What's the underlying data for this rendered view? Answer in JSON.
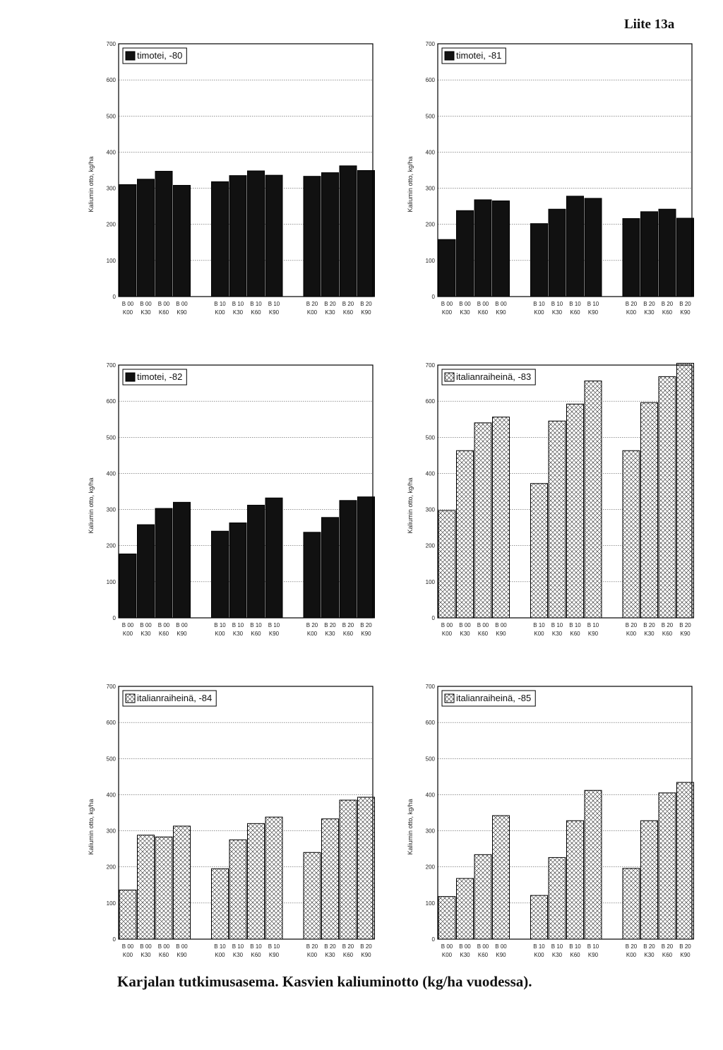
{
  "page": {
    "appendix_label": "Liite 13a",
    "caption": "Karjalan tutkimusasema. Kasvien kaliuminotto (kg/ha vuodessa)."
  },
  "colors": {
    "solid": "#111111",
    "hatch_bg": "#ffffff",
    "grid": "#555555"
  },
  "chart_data": [
    {
      "type": "bar",
      "fill": "solid",
      "legend": "timotei, -80",
      "legend_position": "top-left",
      "ylabel": "Kaliumin otto, kg/ha",
      "ylim": [
        0,
        700
      ],
      "yticks": [
        "0",
        "100",
        "200",
        "300",
        "400",
        "500",
        "600",
        "700"
      ],
      "groups": [
        {
          "top": [
            "B 00",
            "B 00",
            "B 00",
            "B 00"
          ],
          "bottom": [
            "K00",
            "K30",
            "K60",
            "K90"
          ],
          "values": [
            310,
            325,
            347,
            308
          ]
        },
        {
          "top": [
            "B 10",
            "B 10",
            "B 10",
            "B 10"
          ],
          "bottom": [
            "K00",
            "K30",
            "K60",
            "K90"
          ],
          "values": [
            318,
            335,
            348,
            336
          ]
        },
        {
          "top": [
            "B 20",
            "B 20",
            "B 20",
            "B 20"
          ],
          "bottom": [
            "K00",
            "K30",
            "K60",
            "K90"
          ],
          "values": [
            333,
            343,
            362,
            349
          ]
        }
      ]
    },
    {
      "type": "bar",
      "fill": "solid",
      "legend": "timotei, -81",
      "legend_position": "top-left",
      "ylabel": "Kaliumin otto, kg/ha",
      "ylim": [
        0,
        700
      ],
      "yticks": [
        "0",
        "100",
        "200",
        "300",
        "400",
        "500",
        "600",
        "700"
      ],
      "groups": [
        {
          "top": [
            "B 00",
            "B 00",
            "B 00",
            "B 00"
          ],
          "bottom": [
            "K00",
            "K30",
            "K60",
            "K90"
          ],
          "values": [
            158,
            238,
            268,
            265
          ]
        },
        {
          "top": [
            "B 10",
            "B 10",
            "B 10",
            "B 10"
          ],
          "bottom": [
            "K00",
            "K30",
            "K60",
            "K90"
          ],
          "values": [
            202,
            242,
            278,
            272
          ]
        },
        {
          "top": [
            "B 20",
            "B 20",
            "B 20",
            "B 20"
          ],
          "bottom": [
            "K00",
            "K30",
            "K60",
            "K90"
          ],
          "values": [
            216,
            235,
            242,
            217
          ]
        }
      ]
    },
    {
      "type": "bar",
      "fill": "solid",
      "legend": "timotei, -82",
      "legend_position": "top-left",
      "ylabel": "Kaliumin otto, kg/ha",
      "ylim": [
        0,
        700
      ],
      "yticks": [
        "0",
        "100",
        "200",
        "300",
        "400",
        "500",
        "600",
        "700"
      ],
      "groups": [
        {
          "top": [
            "B 00",
            "B 00",
            "B 00",
            "B 00"
          ],
          "bottom": [
            "K00",
            "K30",
            "K60",
            "K90"
          ],
          "values": [
            177,
            258,
            303,
            320
          ]
        },
        {
          "top": [
            "B 10",
            "B 10",
            "B 10",
            "B 10"
          ],
          "bottom": [
            "K00",
            "K30",
            "K60",
            "K90"
          ],
          "values": [
            240,
            263,
            312,
            332
          ]
        },
        {
          "top": [
            "B 20",
            "B 20",
            "B 20",
            "B 20"
          ],
          "bottom": [
            "K00",
            "K30",
            "K60",
            "K90"
          ],
          "values": [
            237,
            278,
            325,
            335
          ]
        }
      ]
    },
    {
      "type": "bar",
      "fill": "hatched",
      "legend": "italianraiheinä, -83",
      "legend_position": "top-left",
      "ylabel": "Kaliumin otto, kg/ha",
      "ylim": [
        0,
        700
      ],
      "yticks": [
        "0",
        "100",
        "200",
        "300",
        "400",
        "500",
        "600",
        "700"
      ],
      "groups": [
        {
          "top": [
            "B 00",
            "B 00",
            "B 00",
            "B 00"
          ],
          "bottom": [
            "K00",
            "K30",
            "K60",
            "K90"
          ],
          "values": [
            297,
            463,
            540,
            556
          ]
        },
        {
          "top": [
            "B 10",
            "B 10",
            "B 10",
            "B 10"
          ],
          "bottom": [
            "K00",
            "K30",
            "K60",
            "K90"
          ],
          "values": [
            372,
            545,
            592,
            656
          ]
        },
        {
          "top": [
            "B 20",
            "B 20",
            "B 20",
            "B 20"
          ],
          "bottom": [
            "K00",
            "K30",
            "K60",
            "K90"
          ],
          "values": [
            463,
            596,
            668,
            705
          ]
        }
      ]
    },
    {
      "type": "bar",
      "fill": "hatched",
      "legend": "italianraiheinä, -84",
      "legend_position": "top-left",
      "ylabel": "Kaliumin otto, kg/ha",
      "ylim": [
        0,
        700
      ],
      "yticks": [
        "0",
        "100",
        "200",
        "300",
        "400",
        "500",
        "600",
        "700"
      ],
      "groups": [
        {
          "top": [
            "B 00",
            "B 00",
            "B 00",
            "B 00"
          ],
          "bottom": [
            "K00",
            "K30",
            "K60",
            "K90"
          ],
          "values": [
            136,
            288,
            283,
            313
          ]
        },
        {
          "top": [
            "B 10",
            "B 10",
            "B 10",
            "B 10"
          ],
          "bottom": [
            "K00",
            "K30",
            "K60",
            "K90"
          ],
          "values": [
            195,
            275,
            320,
            338
          ]
        },
        {
          "top": [
            "B 20",
            "B 20",
            "B 20",
            "B 20"
          ],
          "bottom": [
            "K00",
            "K30",
            "K60",
            "K90"
          ],
          "values": [
            240,
            333,
            385,
            393
          ]
        }
      ]
    },
    {
      "type": "bar",
      "fill": "hatched",
      "legend": "italianraiheinä, -85",
      "legend_position": "top-left",
      "ylabel": "Kaliumin otto, kg/ha",
      "ylim": [
        0,
        700
      ],
      "yticks": [
        "0",
        "100",
        "200",
        "300",
        "400",
        "500",
        "600",
        "700"
      ],
      "groups": [
        {
          "top": [
            "B 00",
            "B 00",
            "B 00",
            "B 00"
          ],
          "bottom": [
            "K00",
            "K30",
            "K60",
            "K90"
          ],
          "values": [
            118,
            168,
            234,
            342
          ]
        },
        {
          "top": [
            "B 10",
            "B 10",
            "B 10",
            "B 10"
          ],
          "bottom": [
            "K00",
            "K30",
            "K60",
            "K90"
          ],
          "values": [
            121,
            226,
            328,
            412
          ]
        },
        {
          "top": [
            "B 20",
            "B 20",
            "B 20",
            "B 20"
          ],
          "bottom": [
            "K00",
            "K30",
            "K60",
            "K90"
          ],
          "values": [
            196,
            328,
            405,
            434
          ]
        }
      ]
    }
  ]
}
